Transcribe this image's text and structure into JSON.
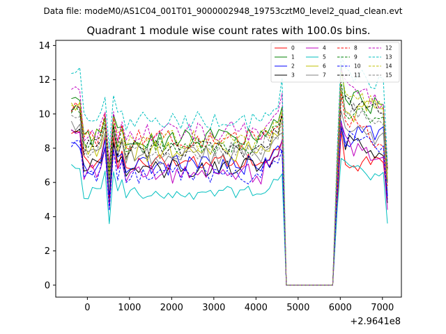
{
  "header": {
    "datafile": "Data file: modeM0/AS1C04_001T01_9000002948_19753cztM0_level2_quad_clean.evt"
  },
  "chart_data": {
    "type": "line",
    "title": "Quadrant 1 module wise count rates with 100.0s bins.",
    "xlabel": "",
    "ylabel": "",
    "x_offset_label": "+2.9641e8",
    "xlim": [
      -750,
      7450
    ],
    "ylim": [
      -0.7,
      14.3
    ],
    "xticks": [
      0,
      1000,
      2000,
      3000,
      4000,
      5000,
      6000,
      7000
    ],
    "xtick_labels": [
      "0",
      "1000",
      "2000",
      "3000",
      "4000",
      "5000",
      "6000",
      "7000"
    ],
    "yticks": [
      0,
      2,
      4,
      6,
      8,
      10,
      12,
      14
    ],
    "ytick_labels": [
      "0",
      "2",
      "4",
      "6",
      "8",
      "10",
      "12",
      "14"
    ],
    "legend_position": "top-right",
    "x_start": -380,
    "x_step": 100,
    "x_end": 7120,
    "gap_start": 4720,
    "gap_end": 5820,
    "series": [
      {
        "name": "0",
        "color": "#ff0000",
        "dashed": false,
        "b": 7.2,
        "a": 0.5,
        "e": 8.8,
        "p": 9.0,
        "s": 7.0,
        "late": 7.3,
        "last": 5.0
      },
      {
        "name": "1",
        "color": "#008000",
        "dashed": false,
        "b": 8.6,
        "a": 0.6,
        "e": 10.8,
        "p": 12.9,
        "s": 11.0,
        "late": 10.5,
        "last": 6.0
      },
      {
        "name": "2",
        "color": "#0000ff",
        "dashed": false,
        "b": 7.0,
        "a": 0.6,
        "e": 8.2,
        "p": 9.6,
        "s": 8.6,
        "late": 9.0,
        "last": 5.2
      },
      {
        "name": "3",
        "color": "#000000",
        "dashed": false,
        "b": 6.8,
        "a": 0.6,
        "e": 8.9,
        "p": 9.3,
        "s": 8.4,
        "late": 7.7,
        "last": 4.8
      },
      {
        "name": "4",
        "color": "#bf00bf",
        "dashed": false,
        "b": 6.5,
        "a": 0.6,
        "e": 8.9,
        "p": 9.5,
        "s": 8.2,
        "late": 7.4,
        "last": 4.4
      },
      {
        "name": "5",
        "color": "#00bfbf",
        "dashed": false,
        "b": 5.4,
        "a": 0.4,
        "e": 6.9,
        "p": 7.4,
        "s": 7.0,
        "late": 6.4,
        "last": 3.6
      },
      {
        "name": "6",
        "color": "#bfbf00",
        "dashed": false,
        "b": 7.8,
        "a": 0.6,
        "e": 10.4,
        "p": 11.4,
        "s": 10.0,
        "late": 10.4,
        "last": 6.2
      },
      {
        "name": "7",
        "color": "#808080",
        "dashed": false,
        "b": 7.6,
        "a": 0.6,
        "e": 9.3,
        "p": 10.2,
        "s": 9.2,
        "late": 8.8,
        "last": 5.5
      },
      {
        "name": "8",
        "color": "#ff0000",
        "dashed": true,
        "b": 8.5,
        "a": 0.6,
        "e": 10.4,
        "p": 11.2,
        "s": 9.8,
        "late": 8.4,
        "last": 5.8
      },
      {
        "name": "9",
        "color": "#008000",
        "dashed": true,
        "b": 8.3,
        "a": 0.6,
        "e": 10.3,
        "p": 12.0,
        "s": 10.3,
        "late": 9.9,
        "last": 6.6
      },
      {
        "name": "10",
        "color": "#0000ff",
        "dashed": true,
        "b": 6.5,
        "a": 0.6,
        "e": 8.3,
        "p": 9.2,
        "s": 8.6,
        "late": 8.0,
        "last": 5.0
      },
      {
        "name": "11",
        "color": "#000000",
        "dashed": true,
        "b": 8.0,
        "a": 0.6,
        "e": 10.4,
        "p": 10.9,
        "s": 10.6,
        "late": 10.3,
        "last": 6.8
      },
      {
        "name": "12",
        "color": "#bf00bf",
        "dashed": true,
        "b": 9.0,
        "a": 0.6,
        "e": 11.6,
        "p": 12.6,
        "s": 11.7,
        "late": 10.6,
        "last": 6.9
      },
      {
        "name": "13",
        "color": "#00bfbf",
        "dashed": true,
        "b": 9.6,
        "a": 0.6,
        "e": 12.5,
        "p": 13.4,
        "s": 12.6,
        "late": 11.9,
        "last": 7.1
      },
      {
        "name": "14",
        "color": "#bfbf00",
        "dashed": true,
        "b": 8.5,
        "a": 0.6,
        "e": 10.6,
        "p": 12.5,
        "s": 11.3,
        "late": 10.5,
        "last": 6.5
      },
      {
        "name": "15",
        "color": "#808080",
        "dashed": true,
        "b": 7.9,
        "a": 0.6,
        "e": 10.0,
        "p": 11.6,
        "s": 10.4,
        "late": 9.4,
        "last": 6.0
      }
    ]
  }
}
